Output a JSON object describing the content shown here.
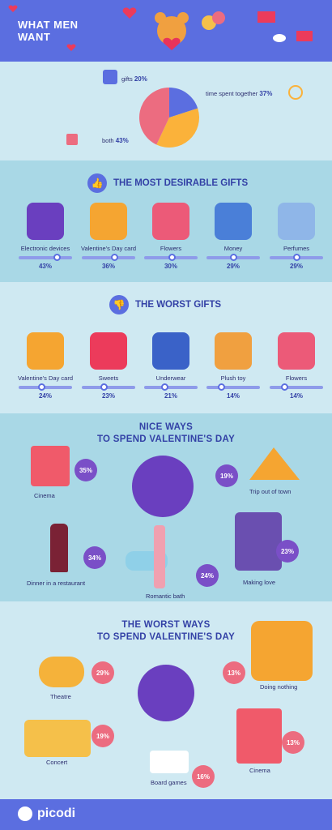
{
  "header": {
    "title_line1": "WHAT MEN",
    "title_line2": "WANT"
  },
  "colors": {
    "header_bg": "#5b6ee0",
    "accent_purple": "#7a4fc7",
    "accent_pink": "#ec6c80",
    "pie_orange": "#fbb23a",
    "pie_pink": "#ec6c80",
    "pie_blue": "#5b6ee0"
  },
  "chart_data": [
    {
      "type": "pie",
      "slices": [
        {
          "label": "gifts",
          "value": 20
        },
        {
          "label": "time spent together",
          "value": 37
        },
        {
          "label": "both",
          "value": 43
        }
      ]
    },
    {
      "type": "bar",
      "title": "THE MOST DESIRABLE GIFTS",
      "categories": [
        "Electronic devices",
        "Valentine's Day card",
        "Flowers",
        "Money",
        "Perfumes"
      ],
      "values": [
        43,
        36,
        30,
        29,
        29
      ]
    },
    {
      "type": "bar",
      "title": "THE WORST GIFTS",
      "categories": [
        "Valentine's Day card",
        "Sweets",
        "Underwear",
        "Plush toy",
        "Flowers"
      ],
      "values": [
        24,
        23,
        21,
        14,
        14
      ]
    },
    {
      "type": "bar",
      "title": "NICE WAYS TO SPEND VALENTINE'S DAY",
      "categories": [
        "Cinema",
        "Trip out of town",
        "Dinner in a restaurant",
        "Making love",
        "Romantic bath"
      ],
      "values": [
        35,
        19,
        34,
        23,
        24
      ]
    },
    {
      "type": "bar",
      "title": "THE WORST WAYS TO SPEND VALENTINE'S DAY",
      "categories": [
        "Theatre",
        "Doing nothing",
        "Concert",
        "Cinema",
        "Board games"
      ],
      "values": [
        29,
        13,
        19,
        13,
        16
      ]
    }
  ],
  "pie_labels": {
    "gifts": "gifts",
    "gifts_pct": "20%",
    "time": "time spent together",
    "time_pct": "37%",
    "both": "both",
    "both_pct": "43%"
  },
  "desirable": {
    "title": "THE MOST DESIRABLE GIFTS",
    "items": [
      {
        "label": "Electronic devices",
        "pct": "43%"
      },
      {
        "label": "Valentine's Day card",
        "pct": "36%"
      },
      {
        "label": "Flowers",
        "pct": "30%"
      },
      {
        "label": "Money",
        "pct": "29%"
      },
      {
        "label": "Perfumes",
        "pct": "29%"
      }
    ]
  },
  "worst_gifts": {
    "title": "THE WORST GIFTS",
    "items": [
      {
        "label": "Valentine's Day card",
        "pct": "24%"
      },
      {
        "label": "Sweets",
        "pct": "23%"
      },
      {
        "label": "Underwear",
        "pct": "21%"
      },
      {
        "label": "Plush toy",
        "pct": "14%"
      },
      {
        "label": "Flowers",
        "pct": "14%"
      }
    ]
  },
  "nice_ways": {
    "title_line1": "NICE WAYS",
    "title_line2": "TO SPEND VALENTINE'S DAY",
    "cinema": {
      "label": "Cinema",
      "pct": "35%"
    },
    "trip": {
      "label": "Trip out of town",
      "pct": "19%"
    },
    "dinner": {
      "label": "Dinner in a restaurant",
      "pct": "34%"
    },
    "love": {
      "label": "Making love",
      "pct": "23%"
    },
    "bath": {
      "label": "Romantic bath",
      "pct": "24%"
    }
  },
  "worst_ways": {
    "title_line1": "THE WORST WAYS",
    "title_line2": "TO SPEND VALENTINE'S DAY",
    "theatre": {
      "label": "Theatre",
      "pct": "29%"
    },
    "nothing": {
      "label": "Doing nothing",
      "pct": "13%"
    },
    "concert": {
      "label": "Concert",
      "pct": "19%"
    },
    "cinema": {
      "label": "Cinema",
      "pct": "13%"
    },
    "board": {
      "label": "Board games",
      "pct": "16%"
    }
  },
  "footer": {
    "logo": "picodi"
  }
}
